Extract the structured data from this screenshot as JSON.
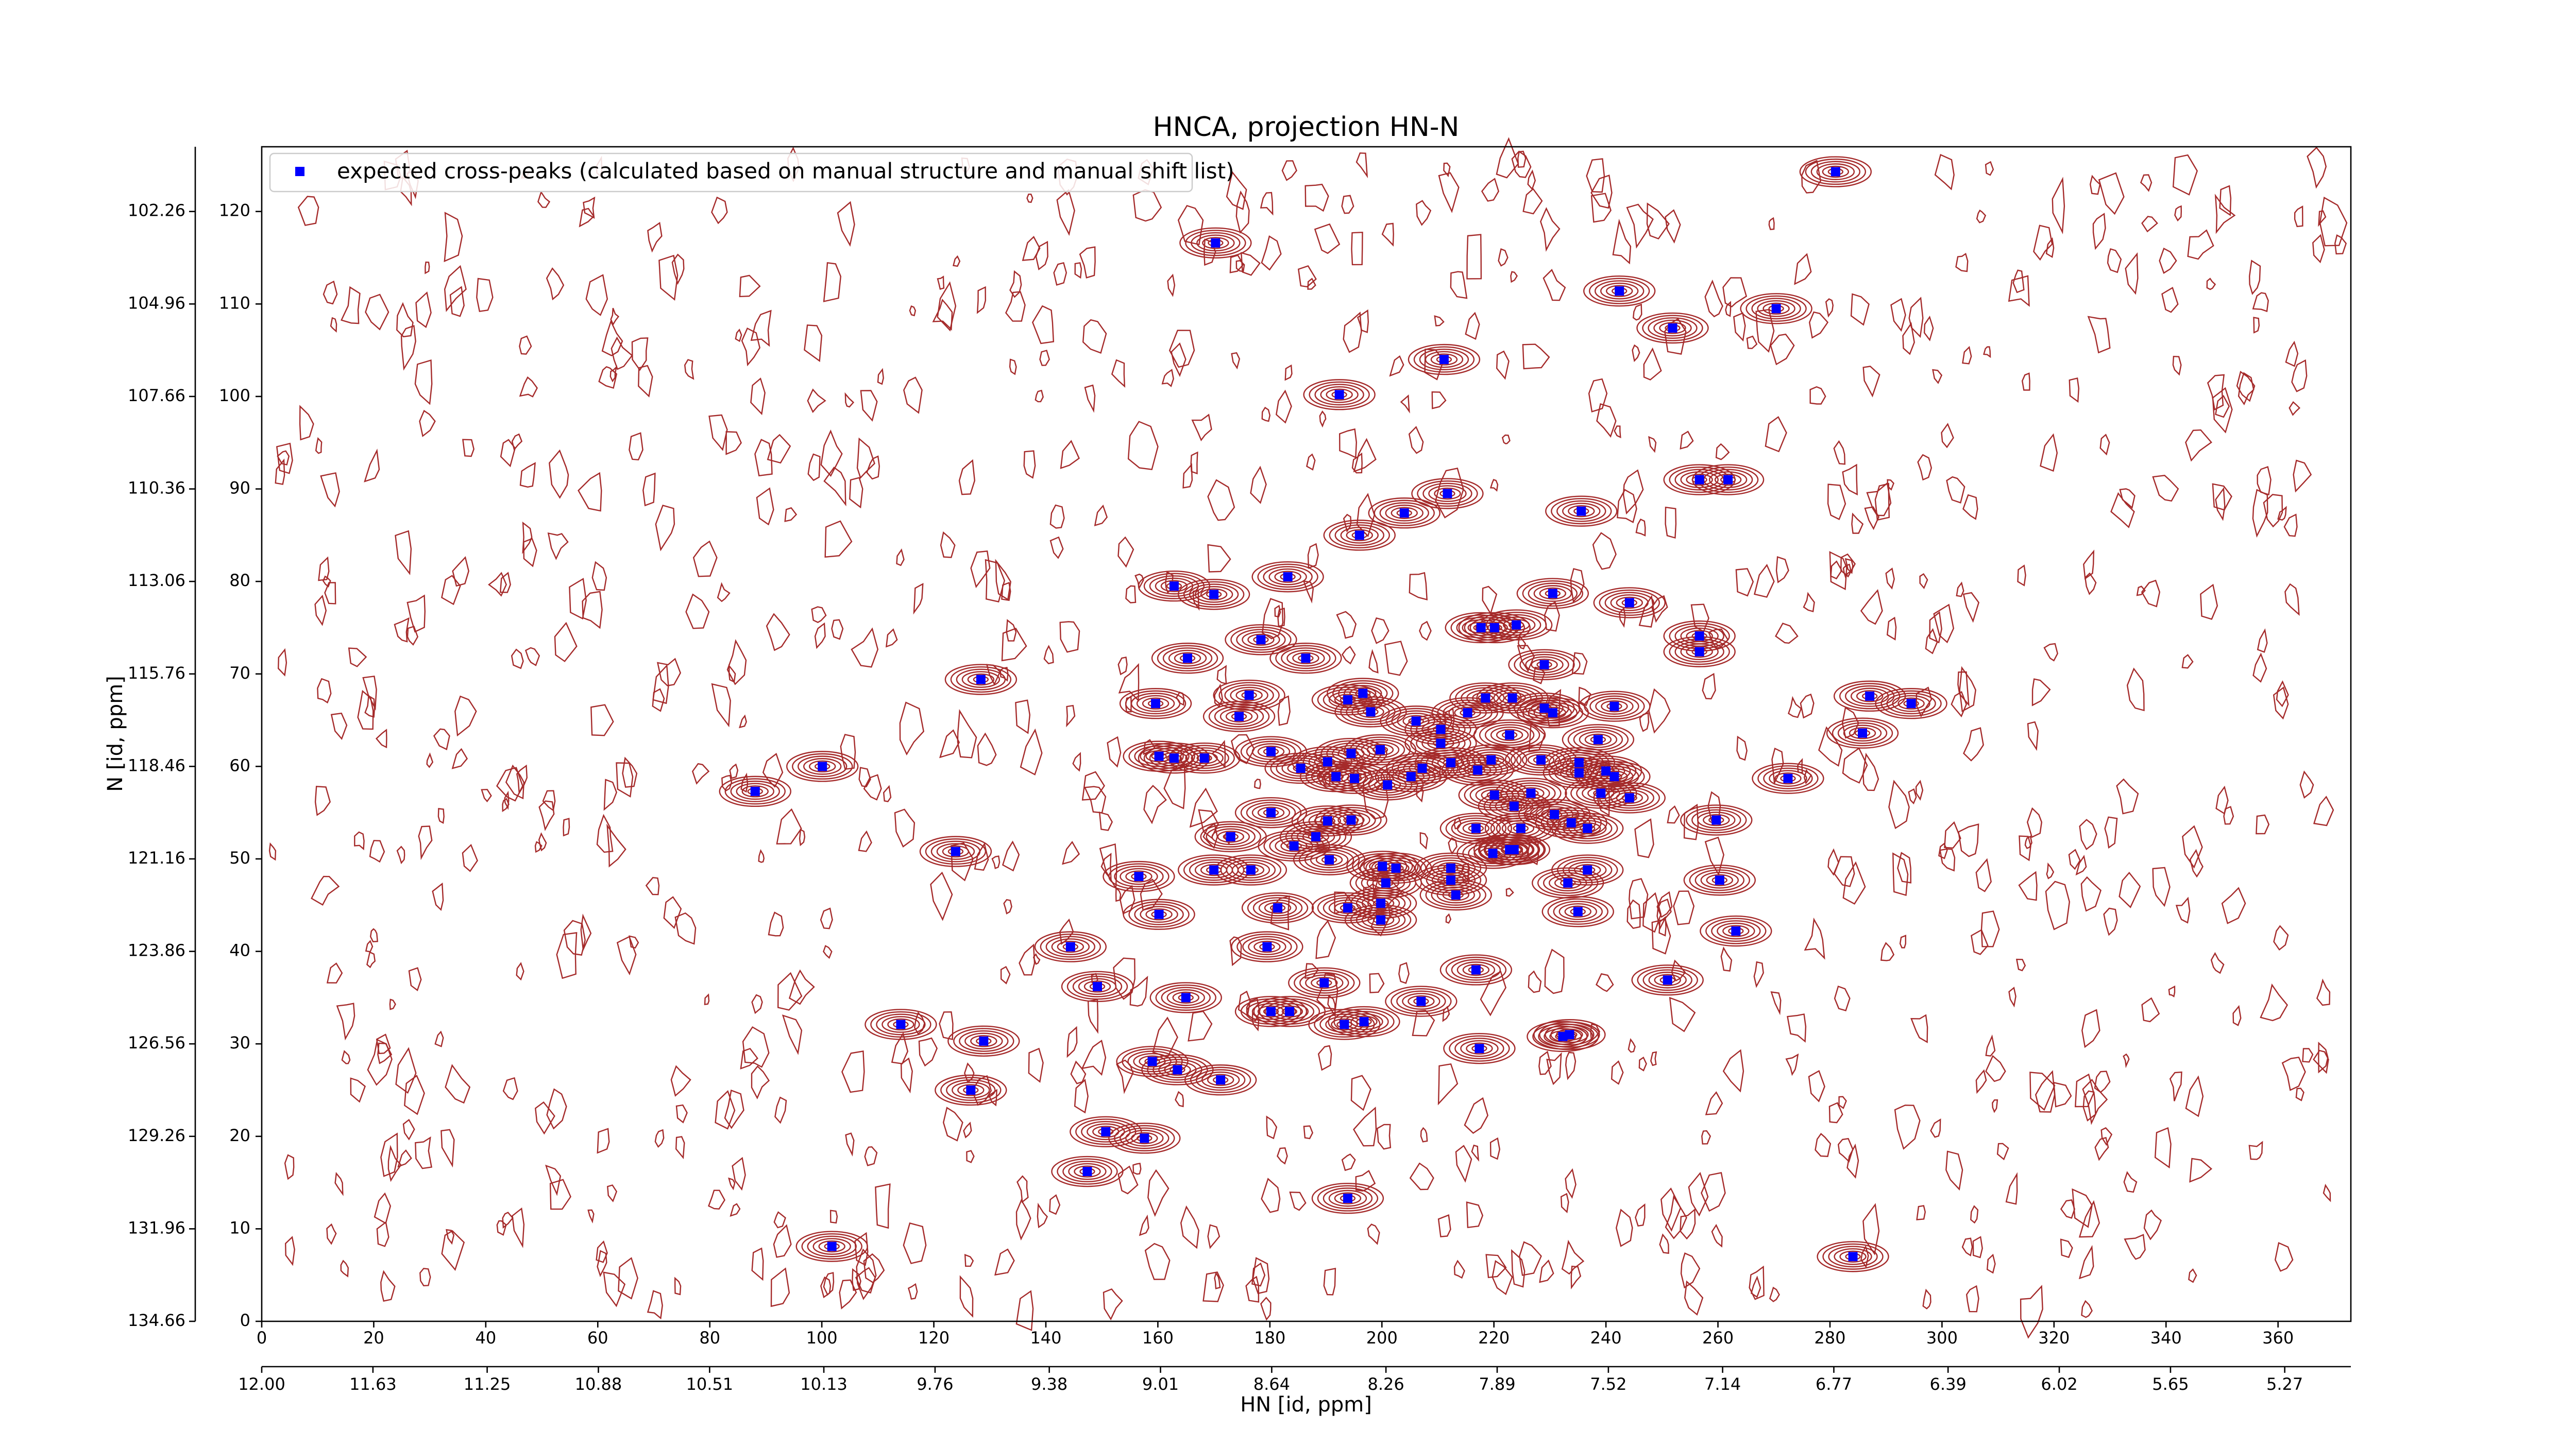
{
  "chart_data": {
    "type": "scatter",
    "title": "HNCA, projection HN-N",
    "xlabel": "HN [id, ppm]",
    "ylabel": "N [id, ppm]",
    "legend": "upper left",
    "xlim": [
      0,
      373
    ],
    "ylim": [
      0,
      127
    ],
    "xticks": [
      0,
      20,
      40,
      60,
      80,
      100,
      120,
      140,
      160,
      180,
      200,
      220,
      240,
      260,
      280,
      300,
      320,
      340,
      360
    ],
    "yticks": [
      0,
      10,
      20,
      30,
      40,
      50,
      60,
      70,
      80,
      90,
      100,
      110,
      120
    ],
    "x2lim": [
      12.0,
      5.05
    ],
    "x2ticks": [
      {
        "value": 12,
        "label": "12.00"
      },
      11.63,
      11.25,
      10.88,
      10.51,
      10.13,
      9.76,
      9.38,
      9.01,
      8.64,
      8.26,
      7.89,
      7.52,
      7.14,
      6.77,
      6.39,
      6.02,
      5.65,
      5.27
    ],
    "y2lim": [
      134.66,
      100.37
    ],
    "y2ticks": [
      134.66,
      131.96,
      129.26,
      126.56,
      123.86,
      121.16,
      118.46,
      115.76,
      113.06,
      110.36,
      107.66,
      104.96,
      102.26
    ],
    "series": [
      {
        "name": "expected cross-peaks (calculated based on manual structure and manual shift list)",
        "color": "#0000ff",
        "x": [
          281,
          170.3,
          242.4,
          270.4,
          251.9,
          211.1,
          192.4,
          256.7,
          261.8,
          211.7,
          204,
          235.6,
          196,
          183.2,
          162.9,
          170,
          230.5,
          244.2,
          217.7,
          220.1,
          224,
          178.4,
          256.7,
          256.7,
          165.3,
          186.4,
          229,
          128.4,
          176.3,
          196.6,
          159.6,
          193.9,
          218.5,
          223.3,
          287.1,
          294.5,
          241.5,
          198,
          229,
          230.5,
          174.5,
          215.3,
          206.1,
          210.5,
          285.8,
          238.6,
          222.8,
          210.5,
          199.7,
          194.5,
          180.2,
          160.2,
          162.9,
          168.3,
          219.5,
          228.4,
          235.2,
          190.3,
          100.1,
          207.2,
          212.3,
          185.5,
          217.1,
          235.2,
          240,
          241.5,
          272.5,
          191.8,
          195.1,
          205.2,
          201,
          88.1,
          220.1,
          226.6,
          239.1,
          244.2,
          223.6,
          180.2,
          230.8,
          190.3,
          194.5,
          233.8,
          259.7,
          173,
          216.8,
          224.8,
          236.7,
          188.2,
          184.3,
          222.8,
          223.6,
          123.9,
          219.8,
          190.6,
          200.1,
          212.3,
          202.5,
          176.6,
          170,
          236.7,
          156.6,
          260.3,
          212.3,
          233.2,
          200.7,
          213.2,
          181.4,
          193.9,
          199.8,
          160.2,
          235,
          199.8,
          263.2,
          179.5,
          144.4,
          216.8,
          251,
          149.2,
          189.7,
          165,
          207,
          180.2,
          183.5,
          114.1,
          193.3,
          196.8,
          232.3,
          233.5,
          128.9,
          217.4,
          159,
          163.5,
          171.2,
          126.6,
          150.7,
          157.6,
          147.4,
          193.9,
          101.8,
          284.1
        ],
        "values": [
          124.3,
          116.6,
          111.4,
          109.5,
          107.4,
          104,
          100.2,
          91,
          91,
          89.5,
          87.4,
          87.6,
          85,
          80.5,
          79.5,
          78.6,
          78.7,
          77.7,
          75,
          75,
          75.3,
          73.7,
          74.1,
          72.4,
          71.7,
          71.7,
          71,
          69.4,
          67.7,
          67.9,
          66.8,
          67.2,
          67.4,
          67.4,
          67.6,
          66.8,
          66.5,
          65.9,
          66.3,
          65.8,
          65.4,
          65.8,
          64.9,
          64,
          63.6,
          62.9,
          63.4,
          62.5,
          61.8,
          61.4,
          61.6,
          61.1,
          60.9,
          60.9,
          60.7,
          60.7,
          60.4,
          60.5,
          60,
          59.8,
          60.4,
          59.8,
          59.6,
          59.3,
          59.5,
          58.9,
          58.7,
          58.9,
          58.7,
          58.9,
          58,
          57.3,
          56.9,
          57.1,
          57.1,
          56.6,
          55.7,
          55,
          54.8,
          54.1,
          54.2,
          53.9,
          54.2,
          52.4,
          53.3,
          53.3,
          53.3,
          52.4,
          51.4,
          51,
          51,
          50.8,
          50.6,
          49.9,
          49.2,
          49,
          49,
          48.8,
          48.8,
          48.8,
          48.1,
          47.7,
          47.7,
          47.4,
          47.4,
          46.1,
          44.7,
          44.7,
          45.2,
          44,
          44.3,
          43.4,
          42.2,
          40.5,
          40.5,
          38,
          36.9,
          36.2,
          36.6,
          35,
          34.6,
          33.5,
          33.5,
          32.1,
          32.1,
          32.4,
          30.8,
          31,
          30.3,
          29.5,
          28.1,
          27.2,
          26.1,
          25,
          20.5,
          19.8,
          16.2,
          13.3,
          8.1,
          7
        ]
      }
    ]
  }
}
